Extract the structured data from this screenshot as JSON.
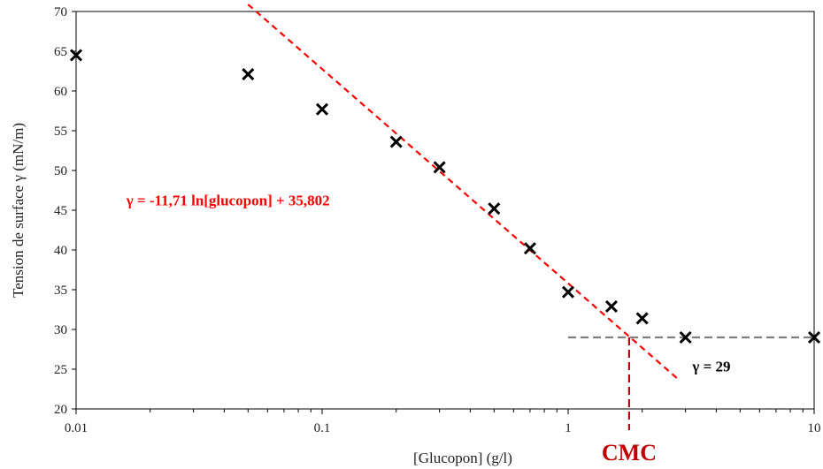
{
  "chart_data": {
    "type": "scatter",
    "title": "",
    "xlabel": "[Glucopon] (g/l)",
    "ylabel": "Tension de surface γ (mN/m)",
    "x_scale": "log",
    "xlim": [
      0.01,
      10
    ],
    "ylim": [
      20,
      70
    ],
    "grid": false,
    "x_ticks": [
      0.01,
      0.1,
      1,
      10
    ],
    "x_tick_labels": [
      "0.01",
      "0.1",
      "1",
      "10"
    ],
    "y_ticks": [
      20,
      25,
      30,
      35,
      40,
      45,
      50,
      55,
      60,
      65,
      70
    ],
    "y_tick_labels": [
      "20",
      "25",
      "30",
      "35",
      "40",
      "45",
      "50",
      "55",
      "60",
      "65",
      "70"
    ],
    "marker": "x",
    "marker_color": "#000000",
    "points": [
      {
        "x": 0.01,
        "y": 64.5
      },
      {
        "x": 0.05,
        "y": 62.1
      },
      {
        "x": 0.1,
        "y": 57.7
      },
      {
        "x": 0.2,
        "y": 53.6
      },
      {
        "x": 0.3,
        "y": 50.4
      },
      {
        "x": 0.5,
        "y": 45.2
      },
      {
        "x": 0.7,
        "y": 40.2
      },
      {
        "x": 1.0,
        "y": 34.7
      },
      {
        "x": 1.5,
        "y": 32.9
      },
      {
        "x": 2.0,
        "y": 31.4
      },
      {
        "x": 3.0,
        "y": 29.0
      },
      {
        "x": 10.0,
        "y": 29.0
      }
    ],
    "fit_line": {
      "label": "γ = -11,71 ln[glucopon] + 35,802",
      "slope_ln": -11.71,
      "intercept": 35.802,
      "x_range": [
        0.05,
        2.85
      ],
      "color": "#ff0000",
      "style": "dashed"
    },
    "plateau_line": {
      "label": "γ = 29",
      "y": 29,
      "x_range": [
        1.0,
        10.0
      ],
      "color": "#808080",
      "style": "dashed"
    },
    "cmc_marker": {
      "label": "CMC",
      "x": 1.77,
      "color": "#c00000",
      "style": "dashed"
    }
  }
}
